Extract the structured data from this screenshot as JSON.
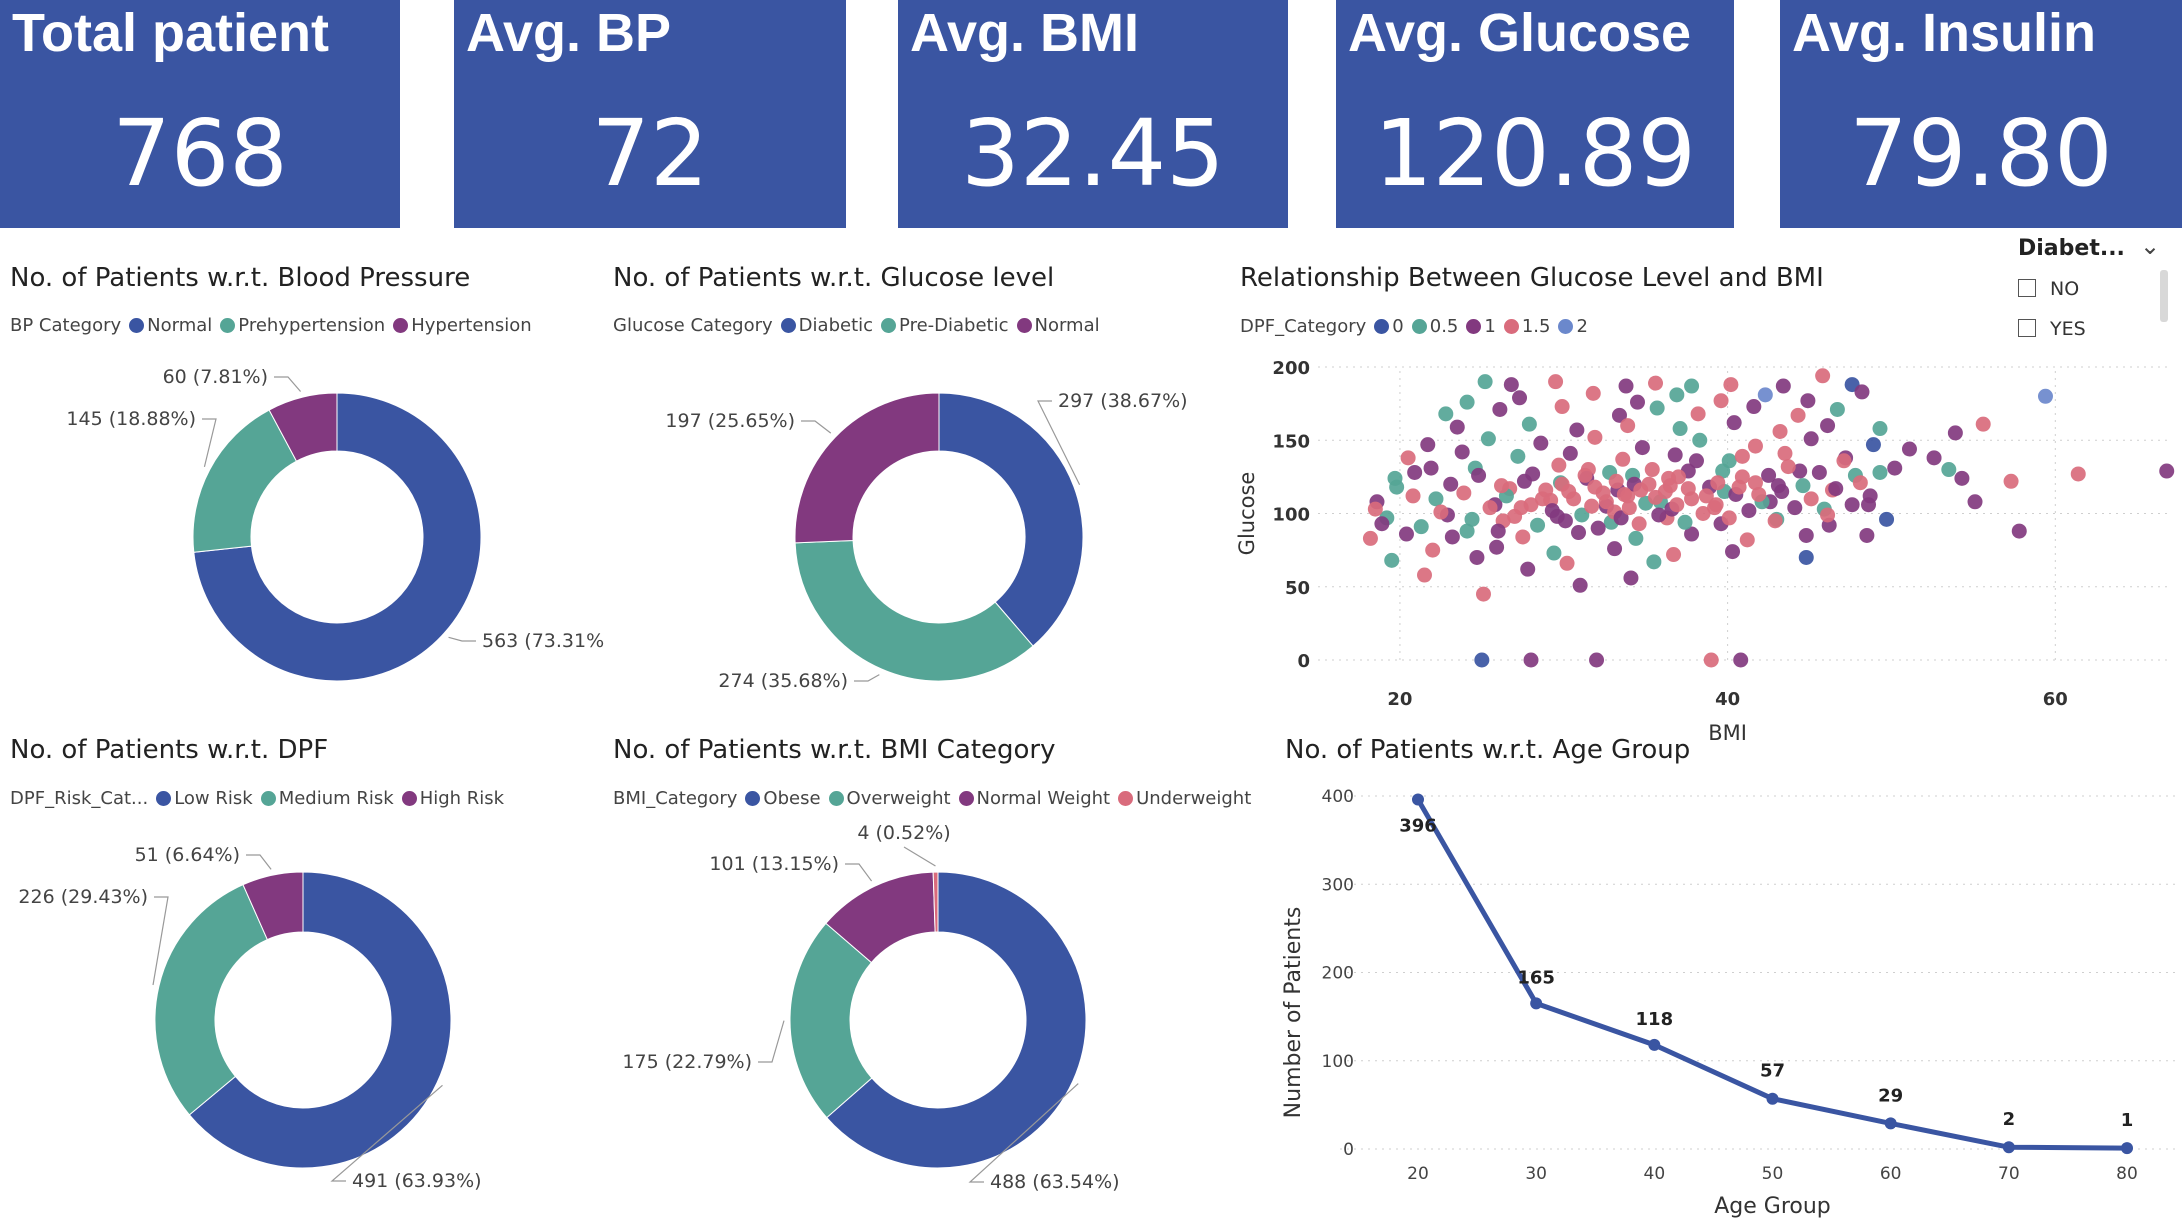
{
  "kpis": [
    {
      "title": "Total patient",
      "value": "768"
    },
    {
      "title": "Avg. BP",
      "value": "72"
    },
    {
      "title": "Avg. BMI",
      "value": "32.45"
    },
    {
      "title": "Avg. Glucose",
      "value": "120.89"
    },
    {
      "title": "Avg. Insulin",
      "value": "79.80"
    }
  ],
  "colors": {
    "blue": "#3a55a2",
    "teal": "#55a596",
    "purple": "#82397f",
    "pink": "#d96b7c",
    "lightblue": "#6b88cc",
    "kpi_bg": "#3a55a2"
  },
  "slicer": {
    "title": "Diabet...",
    "options": [
      "NO",
      "YES"
    ]
  },
  "chart_data": [
    {
      "type": "pie",
      "title": "No. of Patients w.r.t. Blood Pressure",
      "legend_title": "BP Category",
      "categories": [
        "Normal",
        "Prehypertension",
        "Hypertension"
      ],
      "values": [
        563,
        145,
        60
      ],
      "labels": [
        "563 (73.31%",
        "145 (18.88%)",
        "60 (7.81%)"
      ]
    },
    {
      "type": "pie",
      "title": "No. of Patients w.r.t. Glucose level",
      "legend_title": "Glucose Category",
      "categories": [
        "Diabetic",
        "Pre-Diabetic",
        "Normal"
      ],
      "values": [
        297,
        274,
        197
      ],
      "labels": [
        "297 (38.67%)",
        "274 (35.68%)",
        "197 (25.65%)"
      ]
    },
    {
      "type": "scatter",
      "title": "Relationship Between Glucose Level and BMI",
      "legend_title": "DPF_Category",
      "series_names": [
        "0",
        "0.5",
        "1",
        "1.5",
        "2"
      ],
      "xlabel": "BMI",
      "ylabel": "Glucose",
      "xlim": [
        15,
        67
      ],
      "ylim": [
        0,
        200
      ],
      "xticks": [
        20,
        40,
        60
      ],
      "yticks": [
        0,
        50,
        100,
        150,
        200
      ],
      "points": [
        [
          25.2,
          190,
          1
        ],
        [
          26.8,
          188,
          2
        ],
        [
          29.5,
          190,
          3
        ],
        [
          33.8,
          187,
          2
        ],
        [
          35.6,
          189,
          3
        ],
        [
          37.8,
          187,
          1
        ],
        [
          40.2,
          188,
          3
        ],
        [
          43.4,
          187,
          2
        ],
        [
          45.8,
          194,
          3
        ],
        [
          47.6,
          188,
          0
        ],
        [
          24.1,
          176,
          1
        ],
        [
          27.3,
          179,
          2
        ],
        [
          31.8,
          182,
          3
        ],
        [
          34.5,
          176,
          2
        ],
        [
          36.9,
          181,
          1
        ],
        [
          39.6,
          177,
          3
        ],
        [
          42.3,
          181,
          4
        ],
        [
          44.9,
          177,
          2
        ],
        [
          48.2,
          183,
          2
        ],
        [
          22.8,
          168,
          1
        ],
        [
          26.1,
          171,
          2
        ],
        [
          29.9,
          173,
          3
        ],
        [
          33.4,
          167,
          2
        ],
        [
          35.7,
          172,
          1
        ],
        [
          38.2,
          168,
          3
        ],
        [
          41.6,
          173,
          2
        ],
        [
          44.3,
          167,
          3
        ],
        [
          46.7,
          171,
          1
        ],
        [
          23.5,
          159,
          2
        ],
        [
          27.9,
          161,
          1
        ],
        [
          30.8,
          157,
          2
        ],
        [
          33.9,
          160,
          3
        ],
        [
          37.1,
          158,
          1
        ],
        [
          40.4,
          162,
          2
        ],
        [
          43.2,
          156,
          3
        ],
        [
          46.1,
          160,
          2
        ],
        [
          49.3,
          158,
          1
        ],
        [
          21.7,
          147,
          2
        ],
        [
          25.4,
          151,
          1
        ],
        [
          28.6,
          148,
          2
        ],
        [
          31.9,
          152,
          3
        ],
        [
          34.8,
          145,
          2
        ],
        [
          38.3,
          150,
          1
        ],
        [
          41.7,
          146,
          3
        ],
        [
          45.1,
          151,
          2
        ],
        [
          48.9,
          147,
          0
        ],
        [
          20.5,
          138,
          3
        ],
        [
          23.8,
          142,
          2
        ],
        [
          27.2,
          139,
          1
        ],
        [
          30.4,
          141,
          2
        ],
        [
          33.6,
          137,
          3
        ],
        [
          36.8,
          140,
          2
        ],
        [
          40.1,
          136,
          1
        ],
        [
          43.5,
          141,
          3
        ],
        [
          47.2,
          138,
          2
        ],
        [
          20.9,
          128,
          2
        ],
        [
          24.6,
          131,
          1
        ],
        [
          28.1,
          127,
          2
        ],
        [
          31.5,
          130,
          3
        ],
        [
          34.2,
          126,
          1
        ],
        [
          37.6,
          129,
          2
        ],
        [
          40.9,
          125,
          3
        ],
        [
          44.4,
          129,
          2
        ],
        [
          47.8,
          126,
          1
        ],
        [
          19.8,
          118,
          1
        ],
        [
          23.1,
          120,
          2
        ],
        [
          26.7,
          117,
          3
        ],
        [
          29.8,
          121,
          1
        ],
        [
          33.3,
          116,
          2
        ],
        [
          36.5,
          119,
          3
        ],
        [
          39.8,
          115,
          1
        ],
        [
          43.1,
          119,
          2
        ],
        [
          46.4,
          116,
          3
        ],
        [
          18.6,
          108,
          2
        ],
        [
          22.2,
          110,
          1
        ],
        [
          25.8,
          106,
          2
        ],
        [
          29.2,
          109,
          3
        ],
        [
          32.6,
          105,
          2
        ],
        [
          35.9,
          108,
          1
        ],
        [
          39.2,
          104,
          3
        ],
        [
          42.6,
          108,
          2
        ],
        [
          45.9,
          103,
          1
        ],
        [
          48.6,
          106,
          2
        ],
        [
          19.2,
          97,
          1
        ],
        [
          22.9,
          99,
          2
        ],
        [
          26.3,
          95,
          3
        ],
        [
          29.6,
          98,
          2
        ],
        [
          32.9,
          94,
          1
        ],
        [
          36.3,
          97,
          3
        ],
        [
          39.6,
          93,
          2
        ],
        [
          43.0,
          96,
          1
        ],
        [
          46.2,
          92,
          2
        ],
        [
          20.4,
          86,
          2
        ],
        [
          24.1,
          88,
          1
        ],
        [
          27.5,
          84,
          3
        ],
        [
          30.9,
          87,
          2
        ],
        [
          34.4,
          83,
          1
        ],
        [
          37.8,
          86,
          2
        ],
        [
          41.2,
          82,
          3
        ],
        [
          44.8,
          85,
          2
        ],
        [
          22.0,
          75,
          3
        ],
        [
          25.9,
          77,
          2
        ],
        [
          29.4,
          73,
          1
        ],
        [
          33.1,
          76,
          2
        ],
        [
          36.7,
          72,
          3
        ],
        [
          40.3,
          74,
          2
        ],
        [
          19.5,
          68,
          1
        ],
        [
          24.7,
          70,
          2
        ],
        [
          30.2,
          66,
          3
        ],
        [
          35.5,
          67,
          1
        ],
        [
          21.5,
          58,
          3
        ],
        [
          27.8,
          62,
          2
        ],
        [
          34.1,
          56,
          2
        ],
        [
          25.1,
          45,
          3
        ],
        [
          31.0,
          51,
          2
        ],
        [
          18.5,
          103,
          3
        ],
        [
          18.9,
          93,
          2
        ],
        [
          18.2,
          83,
          3
        ],
        [
          19.7,
          124,
          1
        ],
        [
          20.8,
          112,
          3
        ],
        [
          21.3,
          91,
          1
        ],
        [
          21.9,
          131,
          2
        ],
        [
          22.5,
          101,
          3
        ],
        [
          23.2,
          84,
          2
        ],
        [
          23.9,
          114,
          3
        ],
        [
          24.4,
          96,
          1
        ],
        [
          24.8,
          126,
          2
        ],
        [
          25.5,
          104,
          3
        ],
        [
          26.0,
          88,
          2
        ],
        [
          26.5,
          112,
          1
        ],
        [
          27.0,
          98,
          3
        ],
        [
          27.6,
          122,
          2
        ],
        [
          28.0,
          106,
          3
        ],
        [
          28.4,
          92,
          1
        ],
        [
          28.9,
          116,
          3
        ],
        [
          29.3,
          102,
          2
        ],
        [
          29.7,
          133,
          3
        ],
        [
          30.1,
          95,
          2
        ],
        [
          30.6,
          110,
          3
        ],
        [
          31.1,
          99,
          1
        ],
        [
          31.4,
          124,
          2
        ],
        [
          31.7,
          105,
          3
        ],
        [
          32.1,
          90,
          2
        ],
        [
          32.4,
          114,
          3
        ],
        [
          32.8,
          128,
          1
        ],
        [
          33.1,
          101,
          3
        ],
        [
          33.5,
          97,
          2
        ],
        [
          33.9,
          112,
          3
        ],
        [
          34.3,
          120,
          2
        ],
        [
          34.6,
          93,
          3
        ],
        [
          35.0,
          107,
          1
        ],
        [
          35.4,
          130,
          3
        ],
        [
          35.8,
          99,
          2
        ],
        [
          36.2,
          115,
          3
        ],
        [
          36.6,
          103,
          2
        ],
        [
          37.0,
          125,
          3
        ],
        [
          37.4,
          94,
          1
        ],
        [
          37.8,
          110,
          3
        ],
        [
          38.1,
          136,
          2
        ],
        [
          38.5,
          100,
          3
        ],
        [
          38.9,
          118,
          2
        ],
        [
          39.3,
          106,
          3
        ],
        [
          39.7,
          129,
          1
        ],
        [
          40.1,
          97,
          3
        ],
        [
          40.5,
          113,
          2
        ],
        [
          40.9,
          139,
          3
        ],
        [
          41.3,
          102,
          2
        ],
        [
          41.7,
          121,
          3
        ],
        [
          42.1,
          108,
          1
        ],
        [
          42.5,
          126,
          2
        ],
        [
          42.9,
          95,
          3
        ],
        [
          43.3,
          115,
          2
        ],
        [
          43.7,
          132,
          3
        ],
        [
          44.1,
          104,
          2
        ],
        [
          44.6,
          119,
          1
        ],
        [
          45.1,
          110,
          3
        ],
        [
          45.6,
          128,
          2
        ],
        [
          46.1,
          99,
          3
        ],
        [
          46.6,
          117,
          2
        ],
        [
          47.1,
          136,
          3
        ],
        [
          47.6,
          106,
          2
        ],
        [
          48.1,
          121,
          3
        ],
        [
          48.7,
          112,
          2
        ],
        [
          49.3,
          128,
          1
        ],
        [
          34.7,
          116,
          3
        ],
        [
          33.2,
          122,
          3
        ],
        [
          35.6,
          111,
          3
        ],
        [
          31.9,
          118,
          3
        ],
        [
          36.4,
          124,
          3
        ],
        [
          30.3,
          115,
          3
        ],
        [
          37.6,
          117,
          3
        ],
        [
          32.6,
          108,
          3
        ],
        [
          34.0,
          104,
          3
        ],
        [
          35.2,
          120,
          3
        ],
        [
          33.7,
          113,
          3
        ],
        [
          28.7,
          110,
          3
        ],
        [
          38.7,
          112,
          3
        ],
        [
          29.9,
          120,
          3
        ],
        [
          36.9,
          106,
          3
        ],
        [
          39.4,
          121,
          3
        ],
        [
          27.4,
          104,
          3
        ],
        [
          31.3,
          126,
          3
        ],
        [
          40.7,
          118,
          3
        ],
        [
          26.2,
          119,
          3
        ],
        [
          41.9,
          113,
          3
        ],
        [
          50.2,
          131,
          2
        ],
        [
          51.1,
          144,
          2
        ],
        [
          52.6,
          138,
          2
        ],
        [
          53.5,
          130,
          1
        ],
        [
          54.3,
          124,
          2
        ],
        [
          55.1,
          108,
          2
        ],
        [
          53.9,
          155,
          2
        ],
        [
          55.6,
          161,
          3
        ],
        [
          49.7,
          96,
          0
        ],
        [
          48.5,
          85,
          2
        ],
        [
          57.8,
          88,
          2
        ],
        [
          57.3,
          122,
          3
        ],
        [
          61.4,
          127,
          3
        ],
        [
          66.8,
          129,
          2
        ],
        [
          59.4,
          180,
          4
        ],
        [
          44.8,
          70,
          0
        ],
        [
          25.0,
          0,
          0
        ],
        [
          28.0,
          0,
          2
        ],
        [
          32.0,
          0,
          2
        ],
        [
          39.0,
          0,
          3
        ],
        [
          40.8,
          0,
          2
        ]
      ]
    },
    {
      "type": "pie",
      "title": "No. of Patients w.r.t. DPF",
      "legend_title": "DPF_Risk_Cat...",
      "categories": [
        "Low Risk",
        "Medium Risk",
        "High Risk"
      ],
      "values": [
        491,
        226,
        51
      ],
      "labels": [
        "491 (63.93%)",
        "226 (29.43%)",
        "51 (6.64%)"
      ]
    },
    {
      "type": "pie",
      "title": "No. of Patients w.r.t. BMI Category",
      "legend_title": "BMI_Category",
      "categories": [
        "Obese",
        "Overweight",
        "Normal Weight",
        "Underweight"
      ],
      "values": [
        488,
        175,
        101,
        4
      ],
      "labels": [
        "488 (63.54%)",
        "175 (22.79%)",
        "101 (13.15%)",
        "4 (0.52%)"
      ]
    },
    {
      "type": "line",
      "title": "No. of Patients w.r.t. Age Group",
      "xlabel": "Age Group",
      "ylabel": "Number of Patients",
      "x": [
        20,
        30,
        40,
        50,
        60,
        70,
        80
      ],
      "y": [
        396,
        165,
        118,
        57,
        29,
        2,
        1
      ],
      "xlim": [
        20,
        80
      ],
      "ylim": [
        0,
        400
      ],
      "yticks": [
        0,
        100,
        200,
        300,
        400
      ]
    }
  ]
}
